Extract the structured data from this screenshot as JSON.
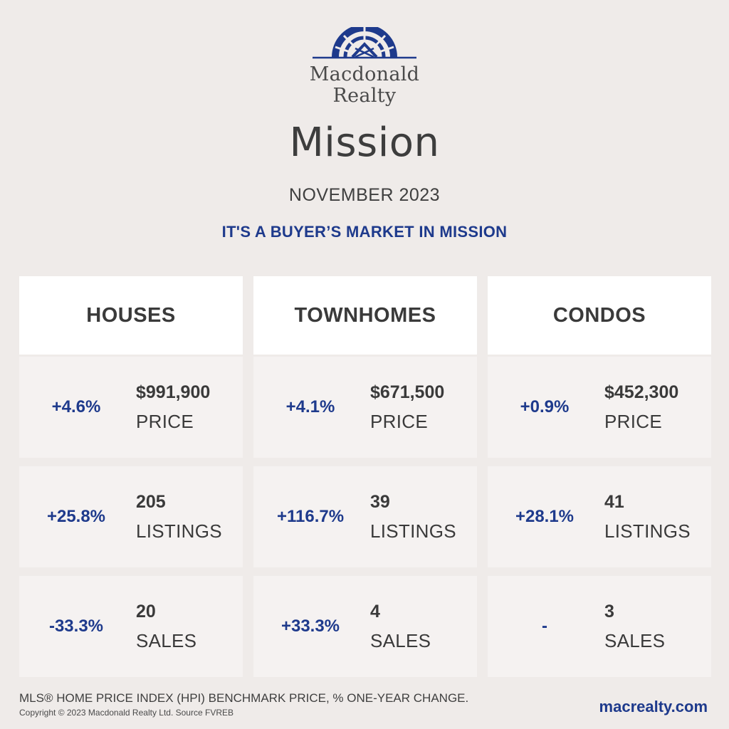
{
  "brand": {
    "line1": "Macdonald",
    "line2": "Realty",
    "logo_icon": "sunrise-arch-icon",
    "color": "#1e3a8c"
  },
  "city": "Mission",
  "month": "NOVEMBER 2023",
  "headline": "IT'S A BUYER’S MARKET IN MISSION",
  "columns": [
    {
      "title": "HOUSES",
      "price": {
        "change": "+4.6%",
        "value": "$991,900",
        "label": "PRICE"
      },
      "listings": {
        "change": "+25.8%",
        "value": "205",
        "label": "LISTINGS"
      },
      "sales": {
        "change": "-33.3%",
        "value": "20",
        "label": "SALES"
      }
    },
    {
      "title": "TOWNHOMES",
      "price": {
        "change": "+4.1%",
        "value": "$671,500",
        "label": "PRICE"
      },
      "listings": {
        "change": "+116.7%",
        "value": "39",
        "label": "LISTINGS"
      },
      "sales": {
        "change": "+33.3%",
        "value": "4",
        "label": "SALES"
      }
    },
    {
      "title": "CONDOS",
      "price": {
        "change": "+0.9%",
        "value": "$452,300",
        "label": "PRICE"
      },
      "listings": {
        "change": "+28.1%",
        "value": "41",
        "label": "LISTINGS"
      },
      "sales": {
        "change": "-",
        "value": "3",
        "label": "SALES"
      }
    }
  ],
  "footer": {
    "note": "MLS® HOME PRICE INDEX (HPI) BENCHMARK PRICE, % ONE-YEAR CHANGE.",
    "copyright": "Copyright © 2023 Macdonald Realty Ltd. Source FVREB",
    "website": "macrealty.com"
  }
}
